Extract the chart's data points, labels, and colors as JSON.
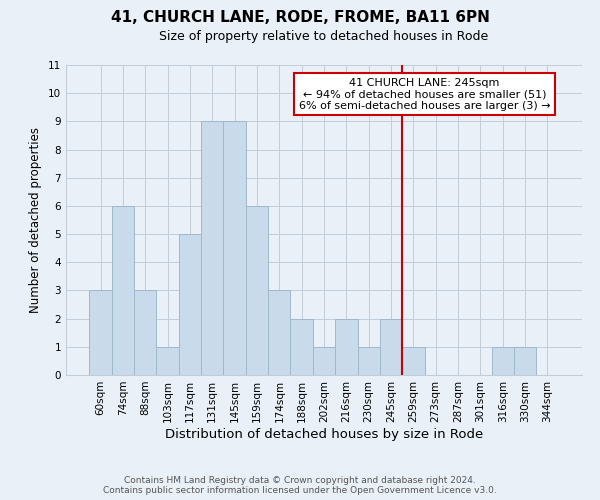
{
  "title": "41, CHURCH LANE, RODE, FROME, BA11 6PN",
  "subtitle": "Size of property relative to detached houses in Rode",
  "xlabel": "Distribution of detached houses by size in Rode",
  "ylabel": "Number of detached properties",
  "bar_labels": [
    "60sqm",
    "74sqm",
    "88sqm",
    "103sqm",
    "117sqm",
    "131sqm",
    "145sqm",
    "159sqm",
    "174sqm",
    "188sqm",
    "202sqm",
    "216sqm",
    "230sqm",
    "245sqm",
    "259sqm",
    "273sqm",
    "287sqm",
    "301sqm",
    "316sqm",
    "330sqm",
    "344sqm"
  ],
  "bar_values": [
    3,
    6,
    3,
    1,
    5,
    9,
    9,
    6,
    3,
    2,
    1,
    2,
    1,
    2,
    1,
    0,
    0,
    0,
    1,
    1,
    0
  ],
  "bar_color": "#c9daea",
  "bar_edge_color": "#a0b8cc",
  "grid_color": "#c0ccd8",
  "background_color": "#eaf0f8",
  "vline_x": 13.5,
  "vline_color": "#cc0000",
  "ylim": [
    0,
    11
  ],
  "yticks": [
    0,
    1,
    2,
    3,
    4,
    5,
    6,
    7,
    8,
    9,
    10,
    11
  ],
  "annotation_title": "41 CHURCH LANE: 245sqm",
  "annotation_line1": "← 94% of detached houses are smaller (51)",
  "annotation_line2": "6% of semi-detached houses are larger (3) →",
  "annotation_box_color": "#ffffff",
  "annotation_border_color": "#cc0000",
  "footer_line1": "Contains HM Land Registry data © Crown copyright and database right 2024.",
  "footer_line2": "Contains public sector information licensed under the Open Government Licence v3.0.",
  "title_fontsize": 11,
  "subtitle_fontsize": 9,
  "xlabel_fontsize": 9.5,
  "ylabel_fontsize": 8.5,
  "tick_fontsize": 7.5,
  "annot_fontsize": 8,
  "footer_fontsize": 6.5
}
